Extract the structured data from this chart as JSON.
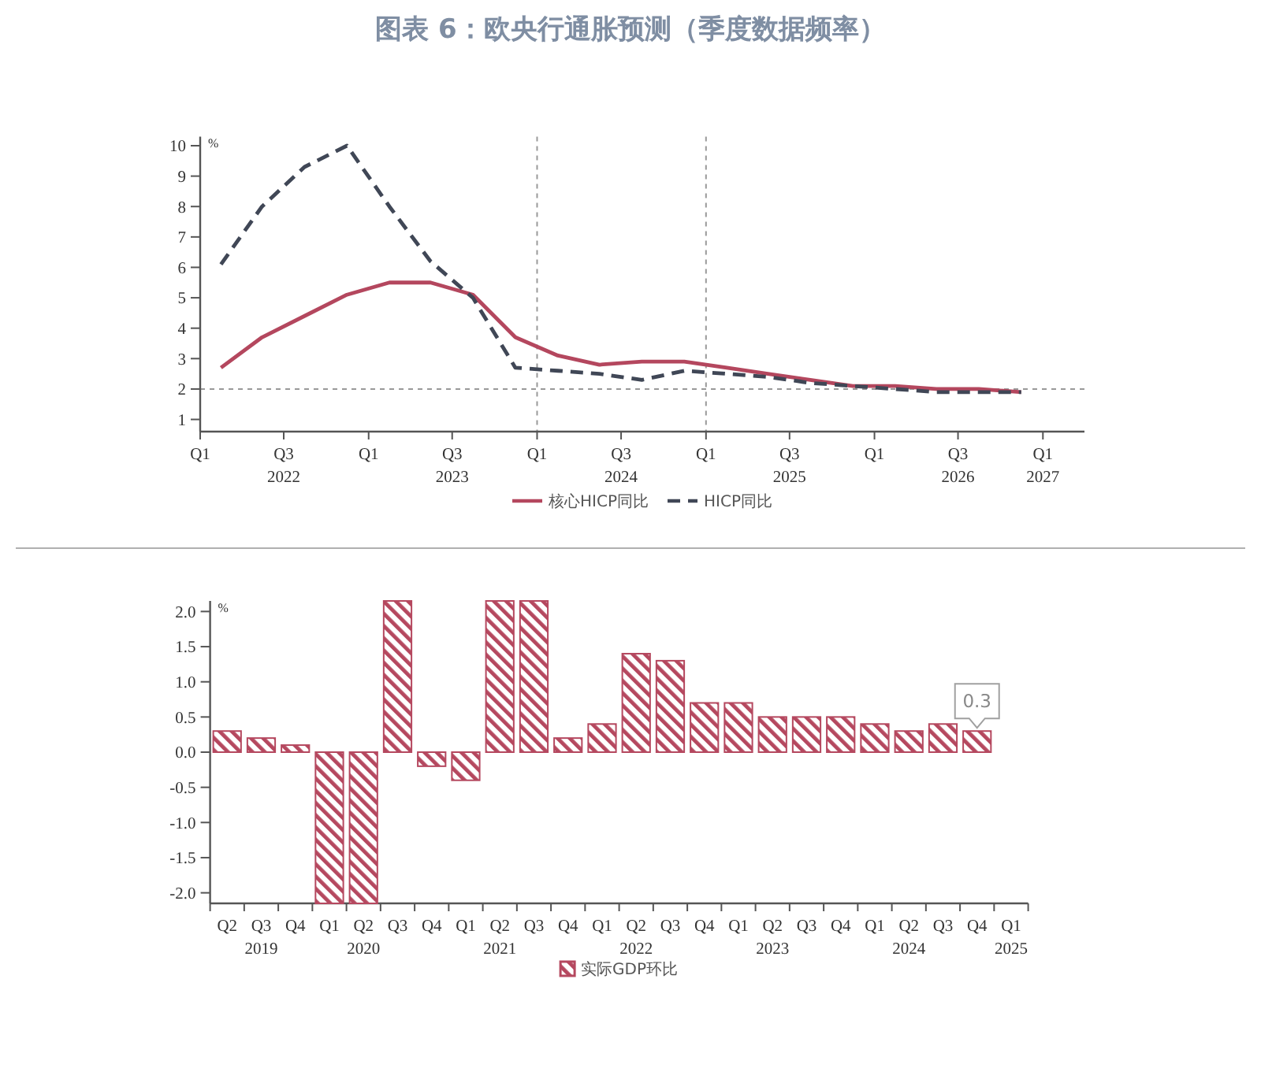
{
  "chart_data": [
    {
      "type": "line",
      "title": "图表 6：欧央行通胀预测（季度数据频率）",
      "ylabel": "%",
      "x": [
        "2022-02-15",
        "2022-05-15",
        "2022-08-15",
        "2022-11-15",
        "2023-02-15",
        "2023-05-15",
        "2023-08-15",
        "2023-11-15",
        "2024-02-15",
        "2024-05-15",
        "2024-08-15",
        "2024-11-15",
        "2025-02-15",
        "2025-05-15",
        "2025-08-15",
        "2025-11-15",
        "2026-02-15",
        "2026-05-15",
        "2026-08-15",
        "2026-11-15"
      ],
      "series": [
        {
          "name": "核心HICP同比",
          "color": "#b4475e",
          "line_style": "solid",
          "values": [
            2.7,
            3.7,
            4.4,
            5.1,
            5.5,
            5.5,
            5.1,
            3.7,
            3.1,
            2.8,
            2.9,
            2.9,
            2.7,
            2.5,
            2.3,
            2.1,
            2.1,
            2.0,
            2.0,
            1.9
          ]
        },
        {
          "name": "HICP同比",
          "color": "#404756",
          "line_style": "dashed",
          "values": [
            6.1,
            8.0,
            9.3,
            10.0,
            8.0,
            6.2,
            5.0,
            2.7,
            2.6,
            2.5,
            2.3,
            2.6,
            2.5,
            2.4,
            2.2,
            2.1,
            2.0,
            1.9,
            1.9,
            1.9
          ]
        }
      ],
      "xlim": [
        "2022-01-01",
        "2027-04-01"
      ],
      "xticks": [
        {
          "value": "2022-01-01",
          "label": "Q1"
        },
        {
          "value": "2022-07-01",
          "label": "Q3\n2022"
        },
        {
          "value": "2023-01-01",
          "label": "Q1"
        },
        {
          "value": "2023-07-01",
          "label": "Q3\n2023"
        },
        {
          "value": "2024-01-01",
          "label": "Q1"
        },
        {
          "value": "2024-07-01",
          "label": "Q3\n2024"
        },
        {
          "value": "2025-01-01",
          "label": "Q1"
        },
        {
          "value": "2025-07-01",
          "label": "Q3\n2025"
        },
        {
          "value": "2026-01-01",
          "label": "Q1"
        },
        {
          "value": "2026-07-01",
          "label": "Q3\n2026"
        },
        {
          "value": "2027-01-01",
          "label": "Q1\n2027"
        }
      ],
      "ylim": [
        0.6,
        10.3
      ],
      "yticks": [
        1,
        2,
        3,
        4,
        5,
        6,
        7,
        8,
        9,
        10
      ],
      "ref_lines": [
        {
          "axis": "y",
          "value": 2,
          "color": "#999999",
          "line_style": "dashed"
        },
        {
          "axis": "x",
          "value": "2024-01-01",
          "color": "#999999",
          "line_style": "dashed"
        },
        {
          "axis": "x",
          "value": "2025-01-01",
          "color": "#999999",
          "line_style": "dashed"
        }
      ],
      "legend": "bottom"
    },
    {
      "type": "bar",
      "ylabel": "%",
      "categories": [
        "Q2",
        "Q3\n2019",
        "Q4",
        "Q1",
        "Q2\n2020",
        "Q3",
        "Q4",
        "Q1",
        "Q2\n2021",
        "Q3",
        "Q4",
        "Q1",
        "Q2\n2022",
        "Q3",
        "Q4",
        "Q1",
        "Q2\n2023",
        "Q3",
        "Q4",
        "Q1",
        "Q2\n2024",
        "Q3",
        "Q4",
        "Q1\n2025"
      ],
      "series": [
        {
          "name": "实际GDP环比",
          "color": "#b5485f",
          "values": [
            0.3,
            0.2,
            0.1,
            -2.15,
            -2.15,
            2.15,
            -0.2,
            -0.4,
            2.15,
            2.15,
            0.2,
            0.4,
            1.4,
            1.3,
            0.7,
            0.7,
            0.5,
            0.5,
            0.5,
            0.4,
            0.3,
            0.4,
            0.3,
            null
          ],
          "value_labels": [
            null,
            null,
            null,
            null,
            null,
            null,
            null,
            null,
            null,
            null,
            null,
            null,
            null,
            null,
            null,
            null,
            null,
            null,
            null,
            null,
            null,
            null,
            "0.3",
            null
          ]
        }
      ],
      "ylim": [
        -2.15,
        2.15
      ],
      "yticks": [
        {
          "value": -2,
          "label": "-2.0"
        },
        {
          "value": -1.5,
          "label": "-1.5"
        },
        {
          "value": -1,
          "label": "-1.0"
        },
        {
          "value": -0.5,
          "label": "-0.5"
        },
        {
          "value": 0,
          "label": "0.0"
        },
        {
          "value": 0.5,
          "label": "0.5"
        },
        {
          "value": 1,
          "label": "1.0"
        },
        {
          "value": 1.5,
          "label": "1.5"
        },
        {
          "value": 2,
          "label": "2.0"
        }
      ],
      "legend": "bottom"
    }
  ]
}
